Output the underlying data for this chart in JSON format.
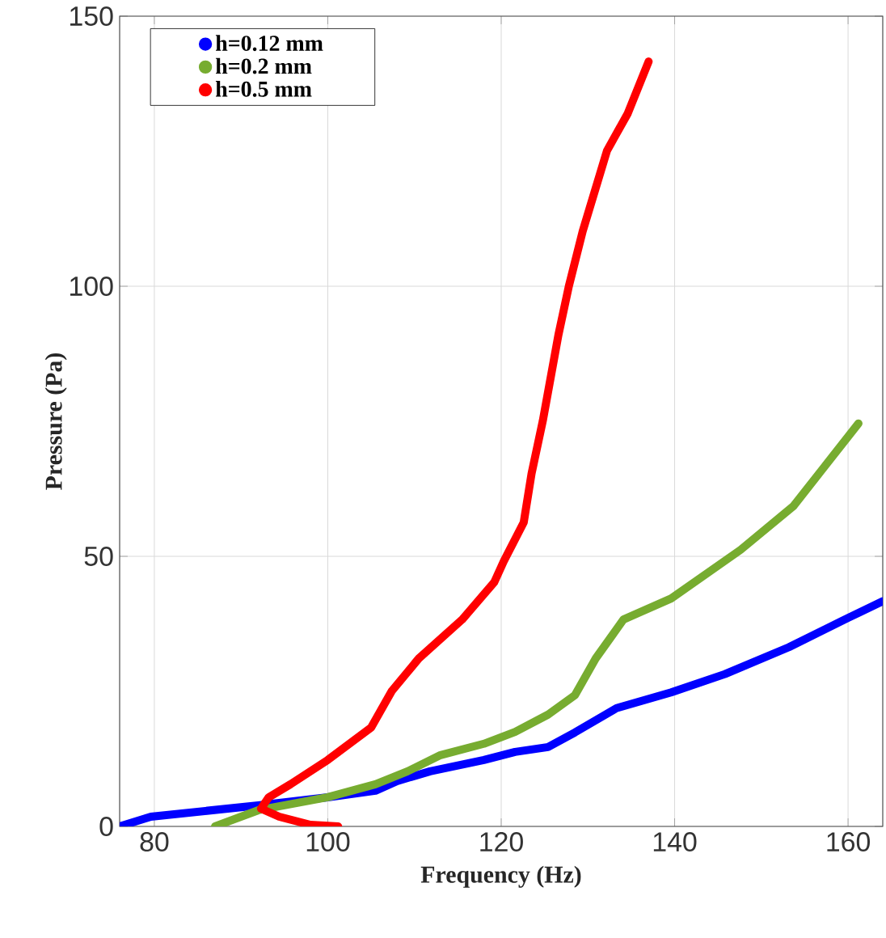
{
  "chart_data": {
    "type": "line",
    "xlabel": "Frequency (Hz)",
    "ylabel": "Pressure (Pa)",
    "xlim": [
      76,
      164
    ],
    "ylim": [
      0,
      150
    ],
    "xticks": [
      80,
      100,
      120,
      140,
      160
    ],
    "yticks": [
      0,
      50,
      100,
      150
    ],
    "grid": true,
    "legend": "top left",
    "series": [
      {
        "name": "h=0.12 mm",
        "color": "#0000ff",
        "x": [
          76,
          79.6,
          92,
          100,
          105.5,
          108,
          111.8,
          118,
          121.6,
          125.4,
          128.5,
          133.3,
          139.6,
          145.8,
          153.2,
          160,
          164
        ],
        "values": [
          0,
          1.8,
          3.9,
          5.4,
          6.6,
          8.4,
          10.2,
          12.3,
          13.8,
          14.7,
          17.4,
          21.9,
          24.8,
          28.2,
          33.2,
          38.6,
          41.7
        ]
      },
      {
        "name": "h=0.2 mm",
        "color": "#77ac30",
        "x": [
          87,
          92,
          100,
          105.5,
          109.2,
          113,
          118,
          121.6,
          125.4,
          128.5,
          130.9,
          134.1,
          139.6,
          147.6,
          153.7,
          161.2
        ],
        "values": [
          0,
          3,
          5.4,
          7.8,
          10.2,
          13.2,
          15.3,
          17.5,
          20.7,
          24.3,
          31.1,
          38.3,
          42.2,
          51.2,
          59.3,
          74.6
        ]
      },
      {
        "name": "h=0.5 mm",
        "color": "#ff0000",
        "x": [
          101.2,
          98,
          94.4,
          92.3,
          93.2,
          95.7,
          100,
          105,
          107.4,
          110.5,
          115.5,
          119.2,
          120.3,
          122.6,
          123.5,
          124.8,
          126.6,
          127.8,
          129.4,
          132.2,
          134.6,
          137
        ],
        "values": [
          0,
          0.3,
          1.8,
          3.3,
          5.4,
          7.8,
          12.3,
          18.3,
          25.1,
          31.1,
          38.3,
          45.2,
          49.1,
          56.3,
          65.3,
          75.1,
          91,
          100,
          110.2,
          125.1,
          132,
          141.6
        ]
      }
    ]
  }
}
